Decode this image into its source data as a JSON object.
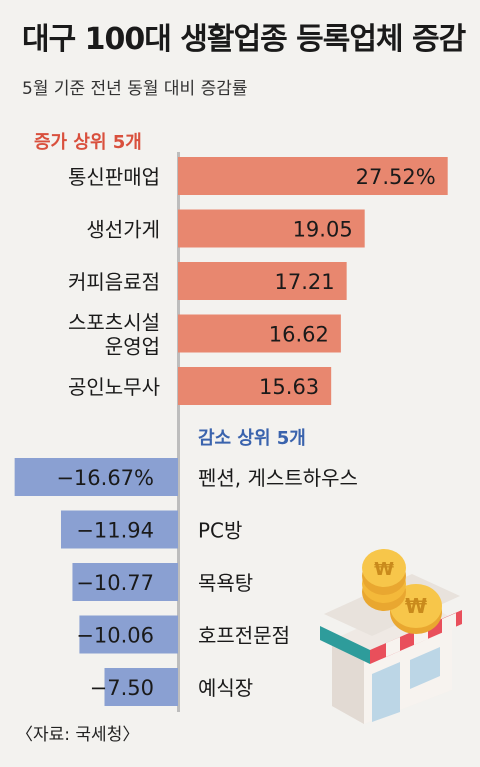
{
  "title": "대구 100대 생활업종 등록업체 증감",
  "subtitle": "5월 기준 전년 동월 대비 증감률",
  "source": "〈자료: 국세청〉",
  "colors": {
    "increase": "#e8876f",
    "decrease": "#8aa0d2",
    "increase_heading": "#d9503d",
    "decrease_heading": "#3a63ad",
    "axis": "#bdbdbd",
    "background": "#f3f2ef"
  },
  "chart_data": [
    {
      "type": "bar",
      "orientation": "horizontal",
      "title": "증가 상위 5개",
      "categories": [
        "통신판매업",
        "생선가게",
        "커피음료점",
        "스포츠시설\n운영업",
        "공인노무사"
      ],
      "values": [
        27.52,
        19.05,
        17.21,
        16.62,
        15.63
      ],
      "value_labels": [
        "27.52%",
        "19.05",
        "17.21",
        "16.62",
        "15.63"
      ],
      "unit": "%"
    },
    {
      "type": "bar",
      "orientation": "horizontal",
      "title": "감소 상위 5개",
      "categories": [
        "펜션, 게스트하우스",
        "PC방",
        "목욕탕",
        "호프전문점",
        "예식장"
      ],
      "values": [
        -16.67,
        -11.94,
        -10.77,
        -10.06,
        -7.5
      ],
      "value_labels": [
        "−16.67%",
        "−11.94",
        "−10.77",
        "−10.06",
        "−7.50"
      ],
      "unit": "%"
    }
  ],
  "illustration": {
    "icon": "shop-with-coins-icon"
  }
}
